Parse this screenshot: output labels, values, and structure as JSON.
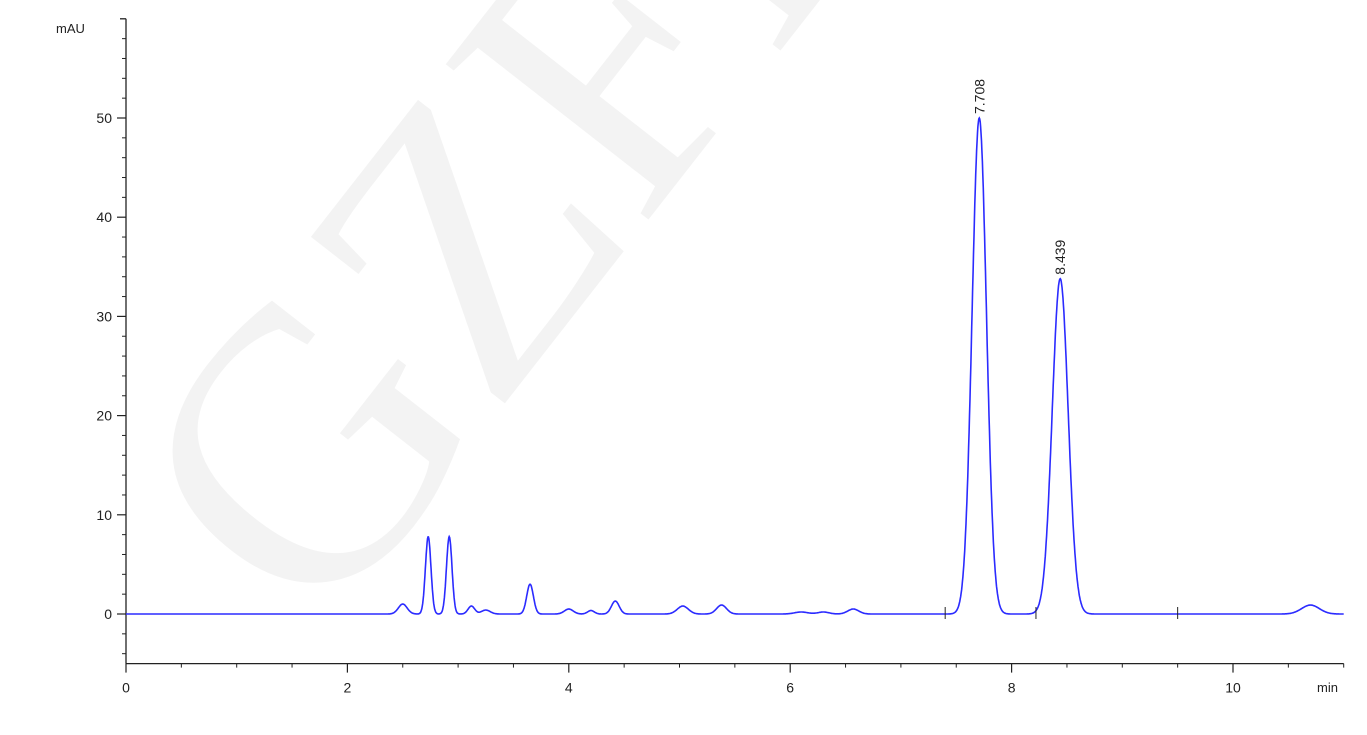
{
  "watermark": "GZFLW",
  "chart_data": {
    "type": "line",
    "title": "",
    "xlabel": "min",
    "ylabel": "mAU",
    "xlim": [
      0,
      11
    ],
    "ylim": [
      -5,
      60
    ],
    "x_ticks": [
      0,
      2,
      4,
      6,
      8,
      10
    ],
    "x_minor_step": 0.5,
    "y_ticks": [
      0,
      10,
      20,
      30,
      40,
      50
    ],
    "y_minor_step": 2,
    "grid": false,
    "line_color": "#2b2bff",
    "baseline_markers": [
      7.4,
      8.22,
      9.5
    ],
    "peaks": [
      {
        "rt": 2.5,
        "height": 1.0,
        "width": 0.04
      },
      {
        "rt": 2.73,
        "height": 7.8,
        "width": 0.025
      },
      {
        "rt": 2.92,
        "height": 7.8,
        "width": 0.025
      },
      {
        "rt": 3.12,
        "height": 0.8,
        "width": 0.03
      },
      {
        "rt": 3.25,
        "height": 0.4,
        "width": 0.04
      },
      {
        "rt": 3.65,
        "height": 3.0,
        "width": 0.03
      },
      {
        "rt": 4.0,
        "height": 0.5,
        "width": 0.04
      },
      {
        "rt": 4.2,
        "height": 0.35,
        "width": 0.03
      },
      {
        "rt": 4.42,
        "height": 1.3,
        "width": 0.035
      },
      {
        "rt": 5.03,
        "height": 0.8,
        "width": 0.05
      },
      {
        "rt": 5.38,
        "height": 0.9,
        "width": 0.045
      },
      {
        "rt": 6.1,
        "height": 0.2,
        "width": 0.06
      },
      {
        "rt": 6.3,
        "height": 0.2,
        "width": 0.05
      },
      {
        "rt": 6.57,
        "height": 0.5,
        "width": 0.05
      },
      {
        "rt": 7.708,
        "height": 50.0,
        "width": 0.065,
        "label": "7.708"
      },
      {
        "rt": 8.439,
        "height": 33.8,
        "width": 0.072,
        "label": "8.439"
      },
      {
        "rt": 10.7,
        "height": 0.9,
        "width": 0.08
      }
    ]
  }
}
